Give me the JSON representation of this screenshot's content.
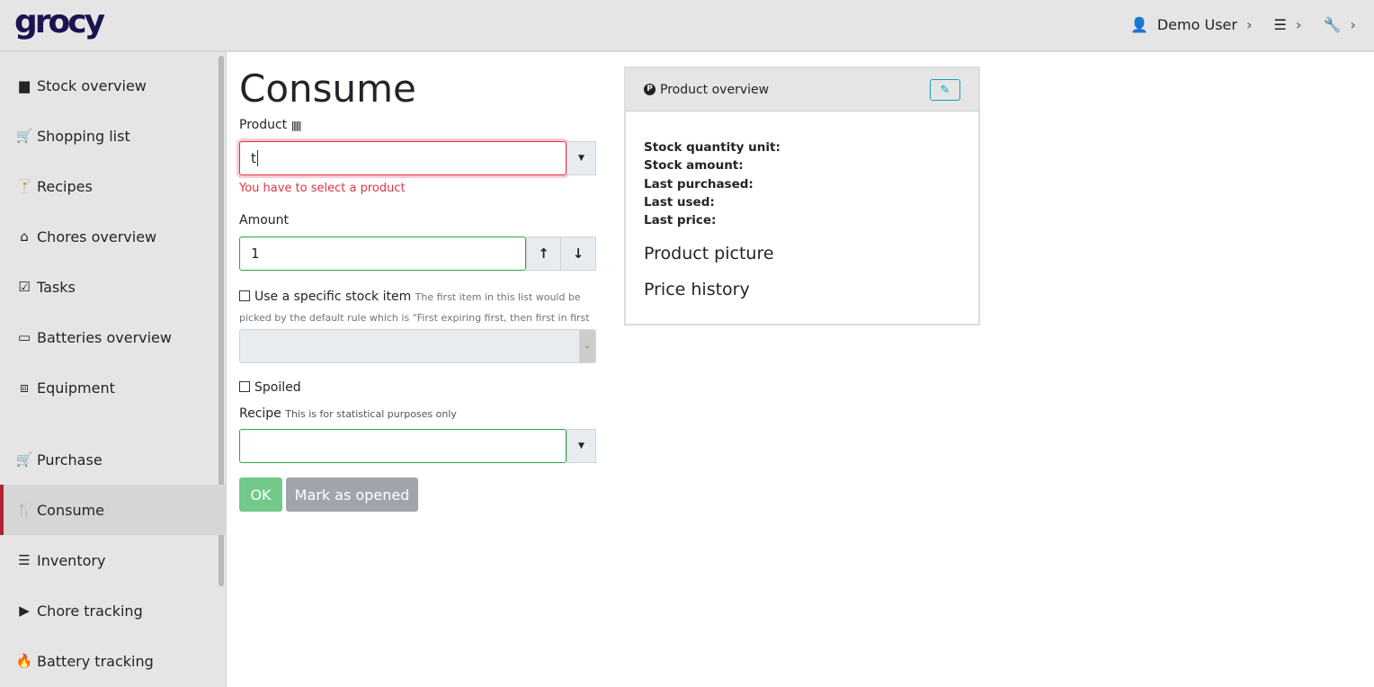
{
  "header": {
    "logo": "grocy",
    "user": "Demo User",
    "user_icon": "user-icon",
    "settings_icon": "sliders-icon",
    "tools_icon": "wrench-icon"
  },
  "sidebar": {
    "items": [
      {
        "label": "Stock overview",
        "icon": "box-icon",
        "glyph": "▆"
      },
      {
        "label": "Shopping list",
        "icon": "cart-icon",
        "glyph": "🛒"
      },
      {
        "label": "Recipes",
        "icon": "cocktail-icon",
        "glyph": "🍸"
      },
      {
        "label": "Chores overview",
        "icon": "home-icon",
        "glyph": "⌂"
      },
      {
        "label": "Tasks",
        "icon": "tasks-icon",
        "glyph": "☑"
      },
      {
        "label": "Batteries overview",
        "icon": "battery-icon",
        "glyph": "▭"
      },
      {
        "label": "Equipment",
        "icon": "toolbox-icon",
        "glyph": "⧈"
      },
      {
        "label": "Purchase",
        "icon": "cart-icon",
        "glyph": "🛒"
      },
      {
        "label": "Consume",
        "icon": "utensils-icon",
        "glyph": "🍴",
        "active": true
      },
      {
        "label": "Inventory",
        "icon": "list-icon",
        "glyph": "☰"
      },
      {
        "label": "Chore tracking",
        "icon": "play-icon",
        "glyph": "▶"
      },
      {
        "label": "Battery tracking",
        "icon": "fire-icon",
        "glyph": "🔥"
      }
    ]
  },
  "main": {
    "title": "Consume",
    "product_label": "Product",
    "product_value": "t",
    "product_error": "You have to select a product",
    "amount_label": "Amount",
    "amount_value": "1",
    "specific_label": "Use a specific stock item",
    "specific_hint": "The first item in this list would be picked by the default rule which is \"First expiring first, then first in first out\"",
    "spoiled_label": "Spoiled",
    "recipe_label": "Recipe",
    "recipe_hint": "This is for statistical purposes only",
    "recipe_value": "",
    "ok_label": "OK",
    "opened_label": "Mark as opened"
  },
  "card": {
    "title": "Product overview",
    "facts": [
      "Stock quantity unit:",
      "Stock amount:",
      "Last purchased:",
      "Last used:",
      "Last price:"
    ],
    "picture": "Product picture",
    "price_history": "Price history"
  },
  "colors": {
    "accent": "#b0232f",
    "valid": "#28a745",
    "invalid": "#dc3545",
    "ok": "#72c98a",
    "secondary": "#a1a5ab",
    "info": "#17a2b8"
  }
}
